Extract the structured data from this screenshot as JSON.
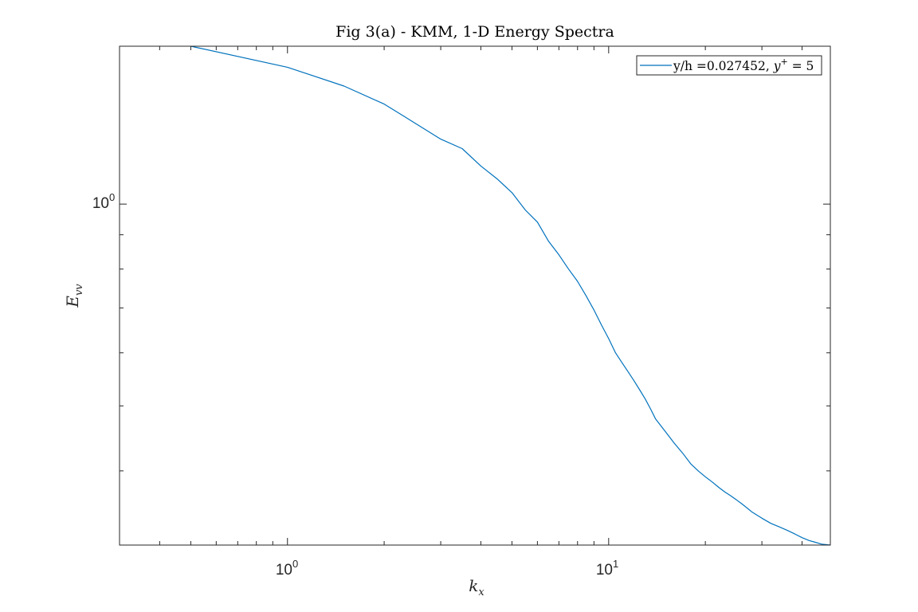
{
  "chart_data": {
    "type": "line",
    "title": "Fig 3(a) - KMM, 1-D Energy Spectra",
    "xlabel": "k_x",
    "ylabel": "E_vv",
    "xscale": "log",
    "yscale": "log",
    "xlim": [
      0.3,
      49
    ],
    "ylim": [
      0.31,
      1.72
    ],
    "x_tick_labels": [
      {
        "base": "10",
        "exp": "0"
      },
      {
        "base": "10",
        "exp": "1"
      }
    ],
    "y_tick_labels": [
      {
        "base": "10",
        "exp": "0"
      }
    ],
    "grid": false,
    "legend_position": "top-right",
    "series": [
      {
        "name": "y/h =0.027452, y+ = 5",
        "legend_prefix": "y/h =0.027452, ",
        "legend_math": "y",
        "legend_sup": "+",
        "legend_suffix": " = 5",
        "color": "#0072BD",
        "x": [
          0.5,
          1,
          1.5,
          2,
          2.5,
          3,
          3.5,
          4,
          4.5,
          5,
          5.5,
          6,
          6.5,
          7,
          7.5,
          8,
          8.5,
          9,
          9.5,
          10,
          10.5,
          11,
          11.5,
          12,
          12.5,
          13,
          13.5,
          14,
          15,
          16,
          17,
          18,
          19,
          20,
          21,
          22,
          23,
          24,
          25,
          26,
          27,
          28,
          30,
          32,
          34,
          36,
          38,
          40,
          42,
          44,
          46,
          49
        ],
        "y": [
          1.72,
          1.6,
          1.5,
          1.41,
          1.32,
          1.25,
          1.21,
          1.14,
          1.09,
          1.04,
          0.98,
          0.94,
          0.88,
          0.84,
          0.8,
          0.767,
          0.73,
          0.695,
          0.66,
          0.63,
          0.6,
          0.58,
          0.562,
          0.545,
          0.528,
          0.512,
          0.495,
          0.478,
          0.458,
          0.44,
          0.425,
          0.41,
          0.4,
          0.392,
          0.385,
          0.378,
          0.372,
          0.367,
          0.362,
          0.357,
          0.352,
          0.347,
          0.34,
          0.334,
          0.33,
          0.326,
          0.322,
          0.318,
          0.315,
          0.313,
          0.311,
          0.31
        ]
      }
    ]
  }
}
